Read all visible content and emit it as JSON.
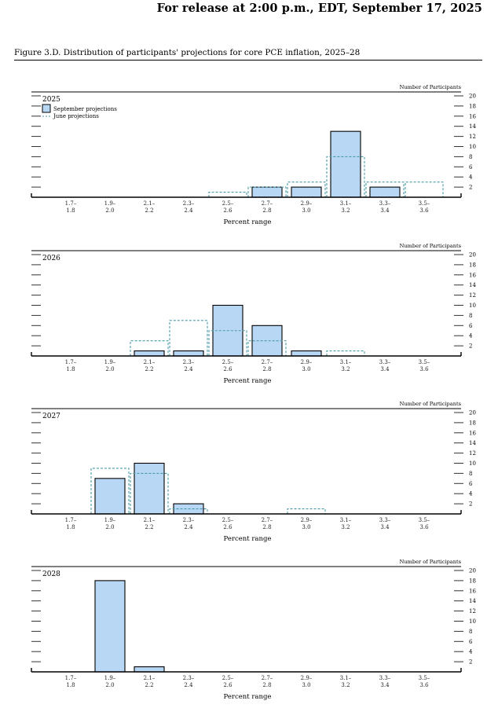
{
  "header": {
    "release": "For release at 2:00 p.m., EDT, September 17, 2025",
    "figure_title": "Figure 3.D. Distribution of participants' projections for core PCE inflation, 2025–28"
  },
  "chart_data": [
    {
      "type": "bar",
      "title": "2025",
      "xlabel": "Percent range",
      "ylabel": "Number of Participants",
      "ylim": [
        0,
        20
      ],
      "yticks": [
        2,
        4,
        6,
        8,
        10,
        12,
        14,
        16,
        18,
        20
      ],
      "categories": [
        "1.7–\n1.8",
        "1.9–\n2.0",
        "2.1–\n2.2",
        "2.3–\n2.4",
        "2.5–\n2.6",
        "2.7–\n2.8",
        "2.9–\n3.0",
        "3.1–\n3.2",
        "3.3–\n3.4",
        "3.5–\n3.6"
      ],
      "legend": [
        "September projections",
        "June projections"
      ],
      "series": [
        {
          "name": "September projections",
          "style": "filled",
          "color": "#b8d7f5",
          "values": [
            0,
            0,
            0,
            0,
            0,
            2,
            2,
            13,
            2,
            0
          ]
        },
        {
          "name": "June projections",
          "style": "dashed",
          "color": "#4a9ba8",
          "values": [
            0,
            0,
            0,
            0,
            1,
            2,
            3,
            8,
            3,
            3
          ]
        }
      ]
    },
    {
      "type": "bar",
      "title": "2026",
      "xlabel": "Percent range",
      "ylabel": "Number of Participants",
      "ylim": [
        0,
        20
      ],
      "yticks": [
        2,
        4,
        6,
        8,
        10,
        12,
        14,
        16,
        18,
        20
      ],
      "categories": [
        "1.7–\n1.8",
        "1.9–\n2.0",
        "2.1–\n2.2",
        "2.3–\n2.4",
        "2.5–\n2.6",
        "2.7–\n2.8",
        "2.9–\n3.0",
        "3.1–\n3.2",
        "3.3–\n3.4",
        "3.5–\n3.6"
      ],
      "series": [
        {
          "name": "September projections",
          "style": "filled",
          "color": "#b8d7f5",
          "values": [
            0,
            0,
            1,
            1,
            10,
            6,
            1,
            0,
            0,
            0
          ]
        },
        {
          "name": "June projections",
          "style": "dashed",
          "color": "#4a9ba8",
          "values": [
            0,
            0,
            3,
            7,
            5,
            3,
            0,
            1,
            0,
            0
          ]
        }
      ]
    },
    {
      "type": "bar",
      "title": "2027",
      "xlabel": "Percent range",
      "ylabel": "Number of Participants",
      "ylim": [
        0,
        20
      ],
      "yticks": [
        2,
        4,
        6,
        8,
        10,
        12,
        14,
        16,
        18,
        20
      ],
      "categories": [
        "1.7–\n1.8",
        "1.9–\n2.0",
        "2.1–\n2.2",
        "2.3–\n2.4",
        "2.5–\n2.6",
        "2.7–\n2.8",
        "2.9–\n3.0",
        "3.1–\n3.2",
        "3.3–\n3.4",
        "3.5–\n3.6"
      ],
      "series": [
        {
          "name": "September projections",
          "style": "filled",
          "color": "#b8d7f5",
          "values": [
            0,
            7,
            10,
            2,
            0,
            0,
            0,
            0,
            0,
            0
          ]
        },
        {
          "name": "June projections",
          "style": "dashed",
          "color": "#4a9ba8",
          "values": [
            0,
            9,
            8,
            1,
            0,
            0,
            1,
            0,
            0,
            0
          ]
        }
      ]
    },
    {
      "type": "bar",
      "title": "2028",
      "xlabel": "Percent range",
      "ylabel": "Number of Participants",
      "ylim": [
        0,
        20
      ],
      "yticks": [
        2,
        4,
        6,
        8,
        10,
        12,
        14,
        16,
        18,
        20
      ],
      "categories": [
        "1.7–\n1.8",
        "1.9–\n2.0",
        "2.1–\n2.2",
        "2.3–\n2.4",
        "2.5–\n2.6",
        "2.7–\n2.8",
        "2.9–\n3.0",
        "3.1–\n3.2",
        "3.3–\n3.4",
        "3.5–\n3.6"
      ],
      "series": [
        {
          "name": "September projections",
          "style": "filled",
          "color": "#b8d7f5",
          "values": [
            0,
            18,
            1,
            0,
            0,
            0,
            0,
            0,
            0,
            0
          ]
        }
      ]
    }
  ]
}
